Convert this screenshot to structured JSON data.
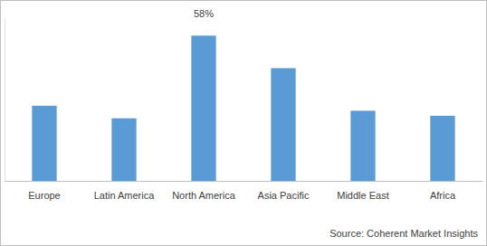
{
  "chart_data": {
    "type": "bar",
    "categories": [
      "Europe",
      "Latin America",
      "North America",
      "Asia Pacific",
      "Middle East",
      "Africa"
    ],
    "values": [
      30,
      25,
      58,
      45,
      28,
      26
    ],
    "value_labels": [
      null,
      null,
      "58%",
      null,
      null,
      null
    ],
    "data_labels": true,
    "color": "#5b9bd5",
    "ylim": [
      0,
      65
    ],
    "yticks": [],
    "tick_labels": "x",
    "grid": false,
    "annotations": [
      "Source: Coherent Market Insights"
    ]
  }
}
